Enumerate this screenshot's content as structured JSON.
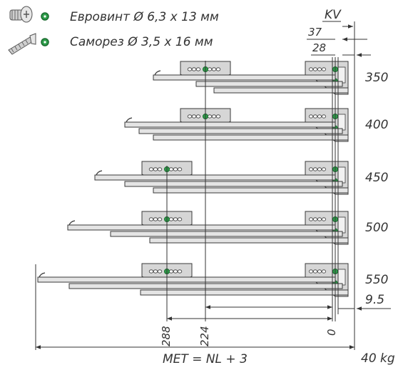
{
  "legend": {
    "euroscrew_label": "Евровинт Ø 6,3 x 13 мм",
    "self_tapping_label": "Саморез Ø 3,5 x 16 мм",
    "marker_color": "#2e9e4a",
    "screw_icon": "euro-screw-icon",
    "tapping_icon": "self-tapping-screw-icon"
  },
  "dims": {
    "kv": "KV",
    "d37": "37",
    "d28": "28",
    "d9_5": "9.5",
    "d288": "288",
    "d224": "224",
    "d0": "0",
    "met_formula": "MET = NL + 3",
    "load": "40 kg"
  },
  "runners": [
    {
      "size_label": "350"
    },
    {
      "size_label": "400"
    },
    {
      "size_label": "450"
    },
    {
      "size_label": "500"
    },
    {
      "size_label": "550"
    }
  ],
  "colors": {
    "line": "#3a3a3a",
    "plate_fill": "#d6d6d6",
    "rail_fill": "#e4e4e4",
    "green": "#2e9e4a"
  }
}
